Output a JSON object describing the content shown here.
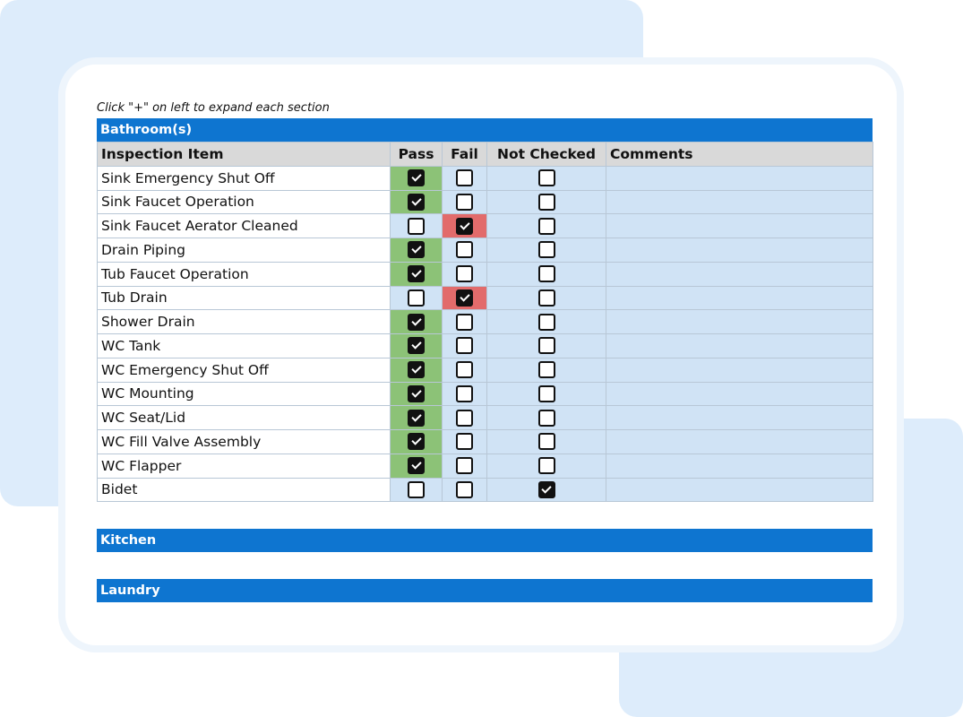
{
  "hint": "Click \"+\" on left to expand each section",
  "colors": {
    "section_bar": "#0e75d0",
    "pass_fill": "#8cc277",
    "fail_fill": "#e26b6b",
    "cell_fill": "#d0e3f5",
    "header_fill": "#d9d9d9"
  },
  "sections": [
    {
      "title": "Bathroom(s)",
      "expanded": true
    },
    {
      "title": "Kitchen",
      "expanded": false
    },
    {
      "title": "Laundry",
      "expanded": false
    }
  ],
  "table": {
    "headers": [
      "Inspection Item",
      "Pass",
      "Fail",
      "Not Checked",
      "Comments"
    ],
    "rows": [
      {
        "item": "Sink Emergency Shut Off",
        "status": "pass",
        "comment": ""
      },
      {
        "item": "Sink Faucet Operation",
        "status": "pass",
        "comment": ""
      },
      {
        "item": "Sink Faucet Aerator Cleaned",
        "status": "fail",
        "comment": ""
      },
      {
        "item": "Drain Piping",
        "status": "pass",
        "comment": ""
      },
      {
        "item": "Tub Faucet Operation",
        "status": "pass",
        "comment": ""
      },
      {
        "item": "Tub Drain",
        "status": "fail",
        "comment": ""
      },
      {
        "item": "Shower Drain",
        "status": "pass",
        "comment": ""
      },
      {
        "item": "WC Tank",
        "status": "pass",
        "comment": ""
      },
      {
        "item": "WC Emergency Shut Off",
        "status": "pass",
        "comment": ""
      },
      {
        "item": "WC Mounting",
        "status": "pass",
        "comment": ""
      },
      {
        "item": "WC Seat/Lid",
        "status": "pass",
        "comment": ""
      },
      {
        "item": "WC Fill Valve Assembly",
        "status": "pass",
        "comment": ""
      },
      {
        "item": "WC Flapper",
        "status": "pass",
        "comment": ""
      },
      {
        "item": "Bidet",
        "status": "not_checked",
        "comment": ""
      }
    ]
  }
}
